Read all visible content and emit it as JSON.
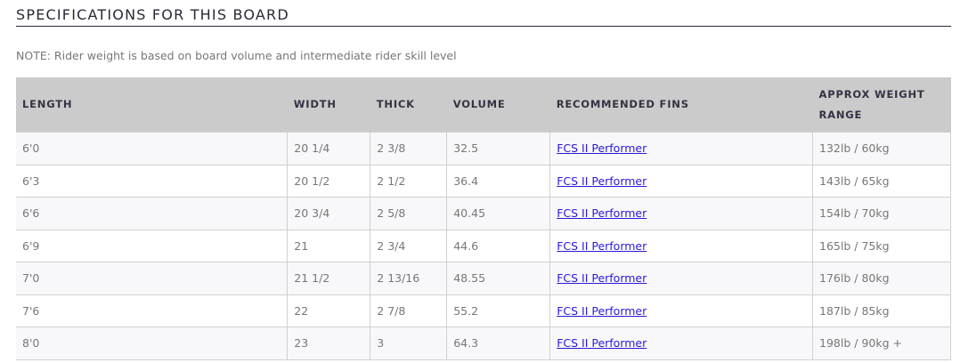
{
  "title": "SPECIFICATIONS FOR THIS BOARD",
  "note": "NOTE: Rider weight is based on board volume and intermediate rider skill level",
  "headers": [
    "LENGTH",
    "WIDTH",
    "THICK",
    "VOLUME",
    "RECOMMENDED FINS",
    "APPROX WEIGHT RANGE"
  ],
  "rows": [
    [
      "6'0",
      "20 1/4",
      "2 3/8",
      "32.5",
      "FCS II Performer",
      "132lb / 60kg"
    ],
    [
      "6'3",
      "20 1/2",
      "2 1/2",
      "36.4",
      "FCS II Performer",
      "143lb / 65kg"
    ],
    [
      "6'6",
      "20 3/4",
      "2 5/8",
      "40.45",
      "FCS II Performer",
      "154lb / 70kg"
    ],
    [
      "6'9",
      "21",
      "2 3/4",
      "44.6",
      "FCS II Performer",
      "165lb / 75kg"
    ],
    [
      "7'0",
      "21 1/2",
      "2 13/16",
      "48.55",
      "FCS II Performer",
      "176lb / 80kg"
    ],
    [
      "7'6",
      "22",
      "2 7/8",
      "55.2",
      "FCS II Performer",
      "187lb / 85kg"
    ],
    [
      "8'0",
      "23",
      "3",
      "64.3",
      "FCS II Performer",
      "198lb / 90kg +"
    ]
  ],
  "colors": {
    "link": "#2a1ad6",
    "header_bg": "#cbcbcb"
  }
}
